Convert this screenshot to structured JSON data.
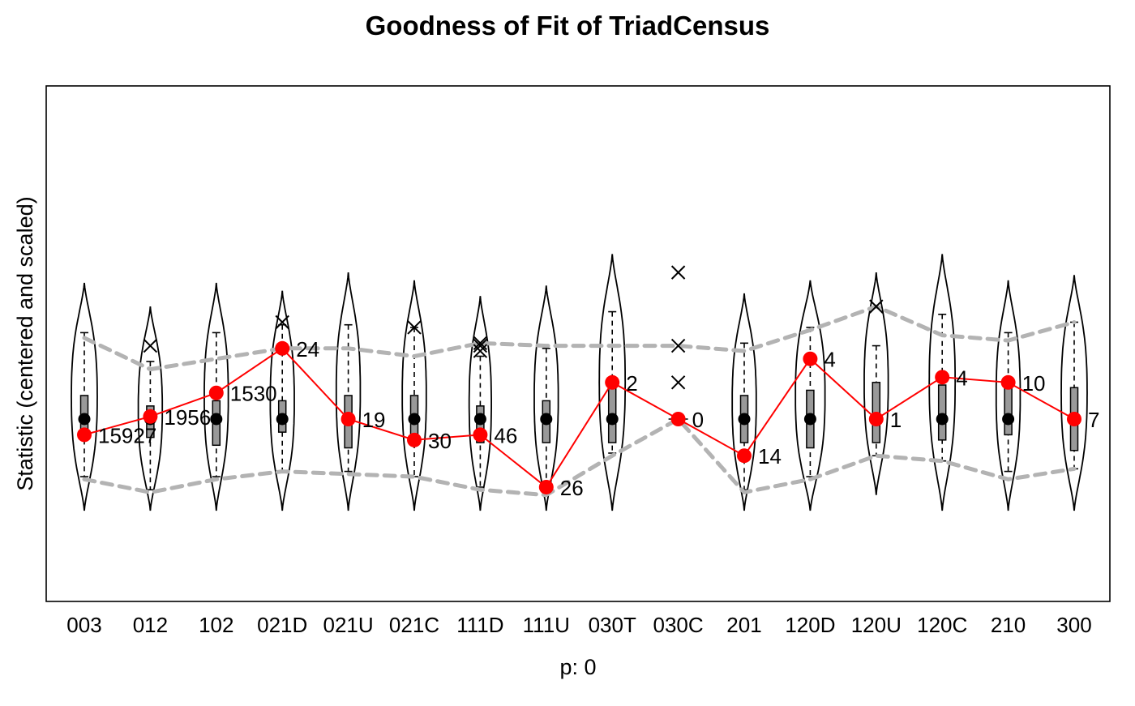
{
  "chart_data": {
    "type": "violin",
    "title": "Goodness of Fit of TriadCensus",
    "xlabel": "p: 0",
    "ylabel": "Statistic (centered and scaled)",
    "ylim": [
      -3.2,
      3.2
    ],
    "categories": [
      "003",
      "012",
      "102",
      "021D",
      "021U",
      "021C",
      "111D",
      "111U",
      "030T",
      "030C",
      "201",
      "120D",
      "120U",
      "120C",
      "210",
      "300"
    ],
    "observed": {
      "name": "observed",
      "color": "#ff0000",
      "scaled": [
        -0.6,
        0.1,
        1.0,
        2.7,
        0.0,
        -0.8,
        -0.6,
        -2.6,
        1.4,
        0.0,
        -1.4,
        2.3,
        0.0,
        1.6,
        1.4,
        0.0
      ],
      "labels": [
        "15927",
        "1956",
        "1530",
        "24",
        "19",
        "30",
        "46",
        "26",
        "2",
        "0",
        "14",
        "4",
        "1",
        "4",
        "10",
        "7"
      ]
    },
    "simulated": {
      "median": [
        0,
        0,
        0,
        0,
        0,
        0,
        0,
        0,
        0,
        0,
        0,
        0,
        0,
        0,
        0,
        0
      ],
      "box_low": [
        -0.5,
        -0.7,
        -1.0,
        -0.5,
        -1.1,
        -0.9,
        -0.9,
        -0.9,
        -0.9,
        0,
        -0.9,
        -1.1,
        -0.9,
        -0.8,
        -0.6,
        -1.2
      ],
      "box_high": [
        0.9,
        0.5,
        0.7,
        0.7,
        0.9,
        0.9,
        0.5,
        0.7,
        1.3,
        0,
        0.9,
        1.1,
        1.4,
        1.3,
        1.2,
        1.2
      ],
      "whisker_low": [
        -2.2,
        -2.7,
        -2.2,
        -2.0,
        -2.0,
        -2.2,
        -2.6,
        -2.6,
        -1.3,
        0,
        -2.7,
        -2.2,
        -1.4,
        -1.6,
        -2.0,
        -1.9
      ],
      "whisker_high": [
        3.3,
        2.2,
        3.3,
        3.6,
        3.6,
        3.5,
        2.4,
        2.7,
        4.1,
        0,
        2.9,
        3.5,
        2.8,
        4.0,
        3.3,
        3.7
      ],
      "violin_max": [
        5.2,
        4.3,
        5.2,
        4.9,
        5.6,
        5.3,
        4.7,
        5.1,
        6.3,
        0,
        4.8,
        5.3,
        5.6,
        6.3,
        5.3,
        5.5
      ],
      "violin_min": [
        -3.5,
        -3.5,
        -3.5,
        -3.5,
        -3.5,
        -3.5,
        -3.5,
        -3.5,
        -3.5,
        0,
        -3.5,
        -3.5,
        -2.9,
        -3.5,
        -3.5,
        -3.5
      ],
      "violin_halfwidth": [
        0.28,
        0.26,
        0.26,
        0.26,
        0.26,
        0.26,
        0.24,
        0.26,
        0.28,
        0,
        0.26,
        0.32,
        0.26,
        0.28,
        0.26,
        0.28
      ],
      "outliers": [
        {
          "category": "012",
          "value": 2.8
        },
        {
          "category": "021D",
          "value": 3.7
        },
        {
          "category": "021C",
          "value": 3.5
        },
        {
          "category": "111D",
          "value": 2.9
        },
        {
          "category": "111D",
          "value": 2.6
        },
        {
          "category": "111D",
          "value": 2.8
        },
        {
          "category": "030C",
          "value": 5.6
        },
        {
          "category": "030C",
          "value": 2.8
        },
        {
          "category": "030C",
          "value": 1.4
        },
        {
          "category": "120U",
          "value": 4.3
        }
      ]
    },
    "envelope": {
      "color": "#b3b3b3",
      "upper": [
        3.1,
        1.9,
        2.3,
        2.7,
        2.7,
        2.4,
        2.9,
        2.8,
        2.8,
        2.8,
        2.6,
        3.4,
        4.3,
        3.2,
        3.0,
        3.7
      ],
      "lower": [
        -2.3,
        -2.8,
        -2.3,
        -2.0,
        -2.1,
        -2.2,
        -2.7,
        -2.9,
        -1.4,
        0.0,
        -2.8,
        -2.3,
        -1.4,
        -1.6,
        -2.3,
        -1.9
      ]
    }
  }
}
